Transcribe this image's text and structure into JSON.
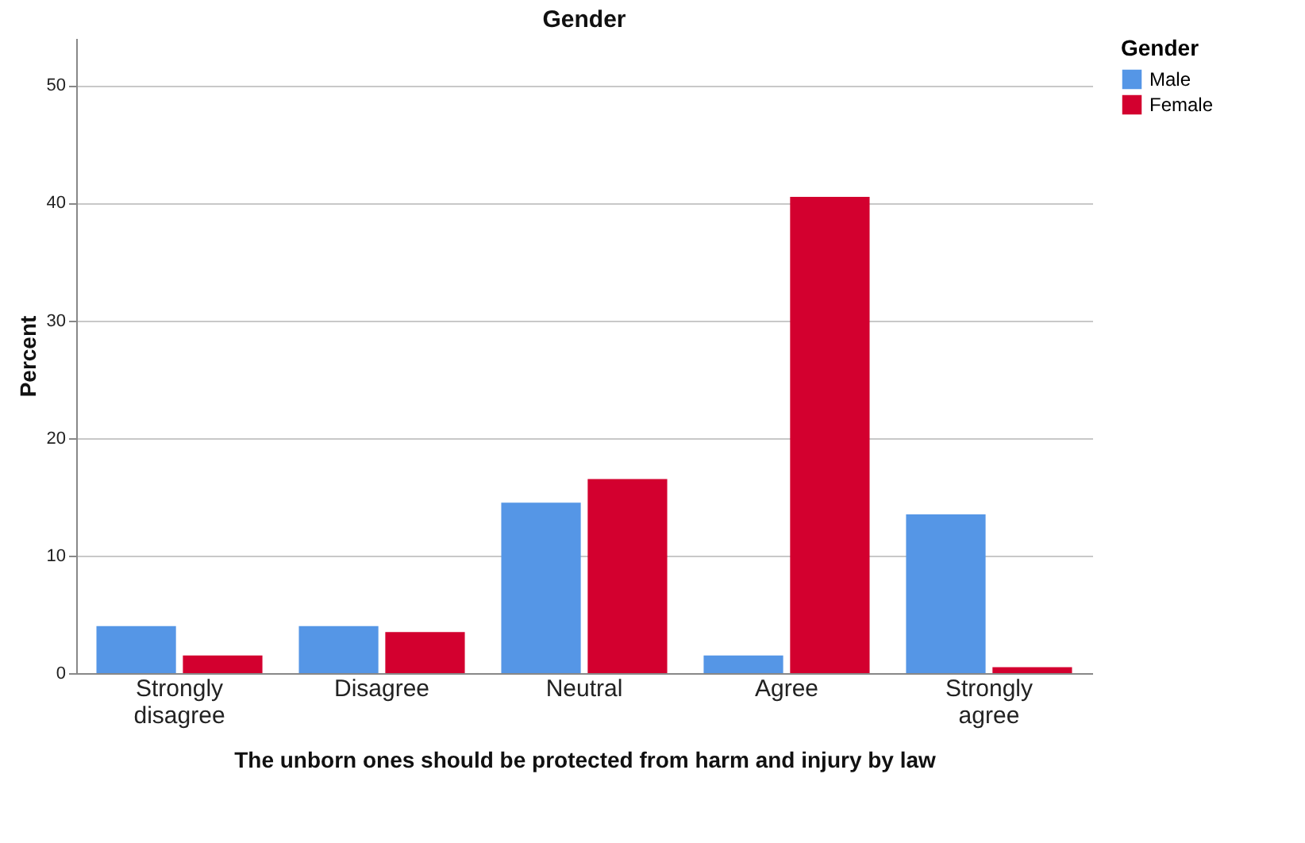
{
  "chart_data": {
    "type": "bar",
    "title": "Gender",
    "xlabel": "The unborn ones should be protected from harm and injury by law",
    "ylabel": "Percent",
    "legend_title": "Gender",
    "categories": [
      "Strongly disagree",
      "Disagree",
      "Neutral",
      "Agree",
      "Strongly agree"
    ],
    "series": [
      {
        "name": "Male",
        "color": "#5596e6",
        "values": [
          4.0,
          4.0,
          14.5,
          1.5,
          13.5
        ]
      },
      {
        "name": "Female",
        "color": "#d3002f",
        "values": [
          1.5,
          3.5,
          16.5,
          40.5,
          0.5
        ]
      }
    ],
    "ylim": [
      0,
      54
    ],
    "yticks": [
      0,
      10,
      20,
      30,
      40,
      50
    ],
    "grid": "y",
    "legend": "top right"
  }
}
